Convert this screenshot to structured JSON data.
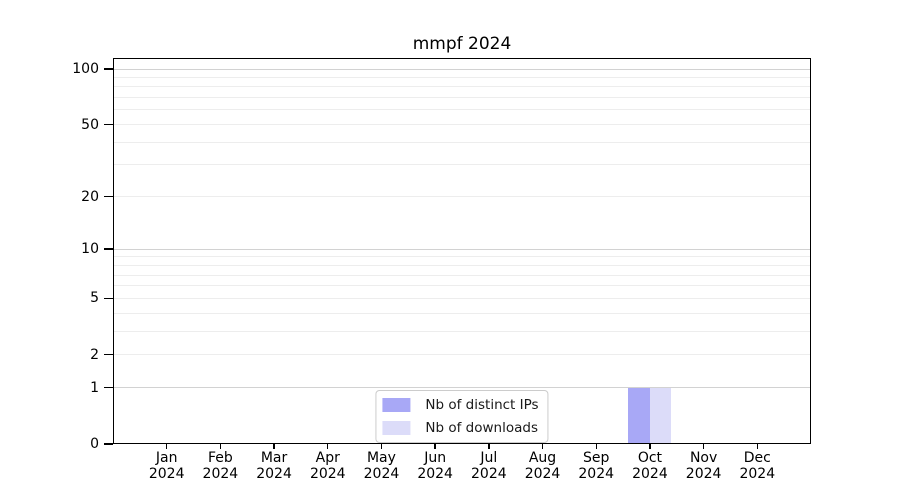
{
  "chart_data": {
    "type": "bar",
    "title": "mmpf 2024",
    "xlabel": "",
    "ylabel": "",
    "y_scale": "log1p",
    "ylim": [
      0,
      100
    ],
    "y_ticks": [
      0,
      1,
      2,
      5,
      10,
      20,
      50,
      100
    ],
    "y_major_gridlines": [
      1,
      10,
      100
    ],
    "y_minor_gridlines": [
      2,
      3,
      4,
      5,
      6,
      7,
      8,
      9,
      20,
      30,
      40,
      50,
      60,
      70,
      80,
      90
    ],
    "grid": true,
    "categories": [
      "Jan",
      "Feb",
      "Mar",
      "Apr",
      "May",
      "Jun",
      "Jul",
      "Aug",
      "Sep",
      "Oct",
      "Nov",
      "Dec"
    ],
    "category_year": "2024",
    "series": [
      {
        "name": "Nb of distinct IPs",
        "color": "#a8a8f6",
        "values": [
          0,
          0,
          0,
          0,
          0,
          0,
          0,
          0,
          0,
          1,
          0,
          0
        ]
      },
      {
        "name": "Nb of downloads",
        "color": "#dcdcf9",
        "values": [
          0,
          0,
          0,
          0,
          0,
          0,
          0,
          0,
          0,
          1,
          0,
          0
        ]
      }
    ],
    "legend_position": "lower center",
    "colors": {
      "axis": "#000000",
      "major_grid": "#d2d2d2",
      "minor_grid": "#ededed",
      "text": "#000000"
    }
  }
}
